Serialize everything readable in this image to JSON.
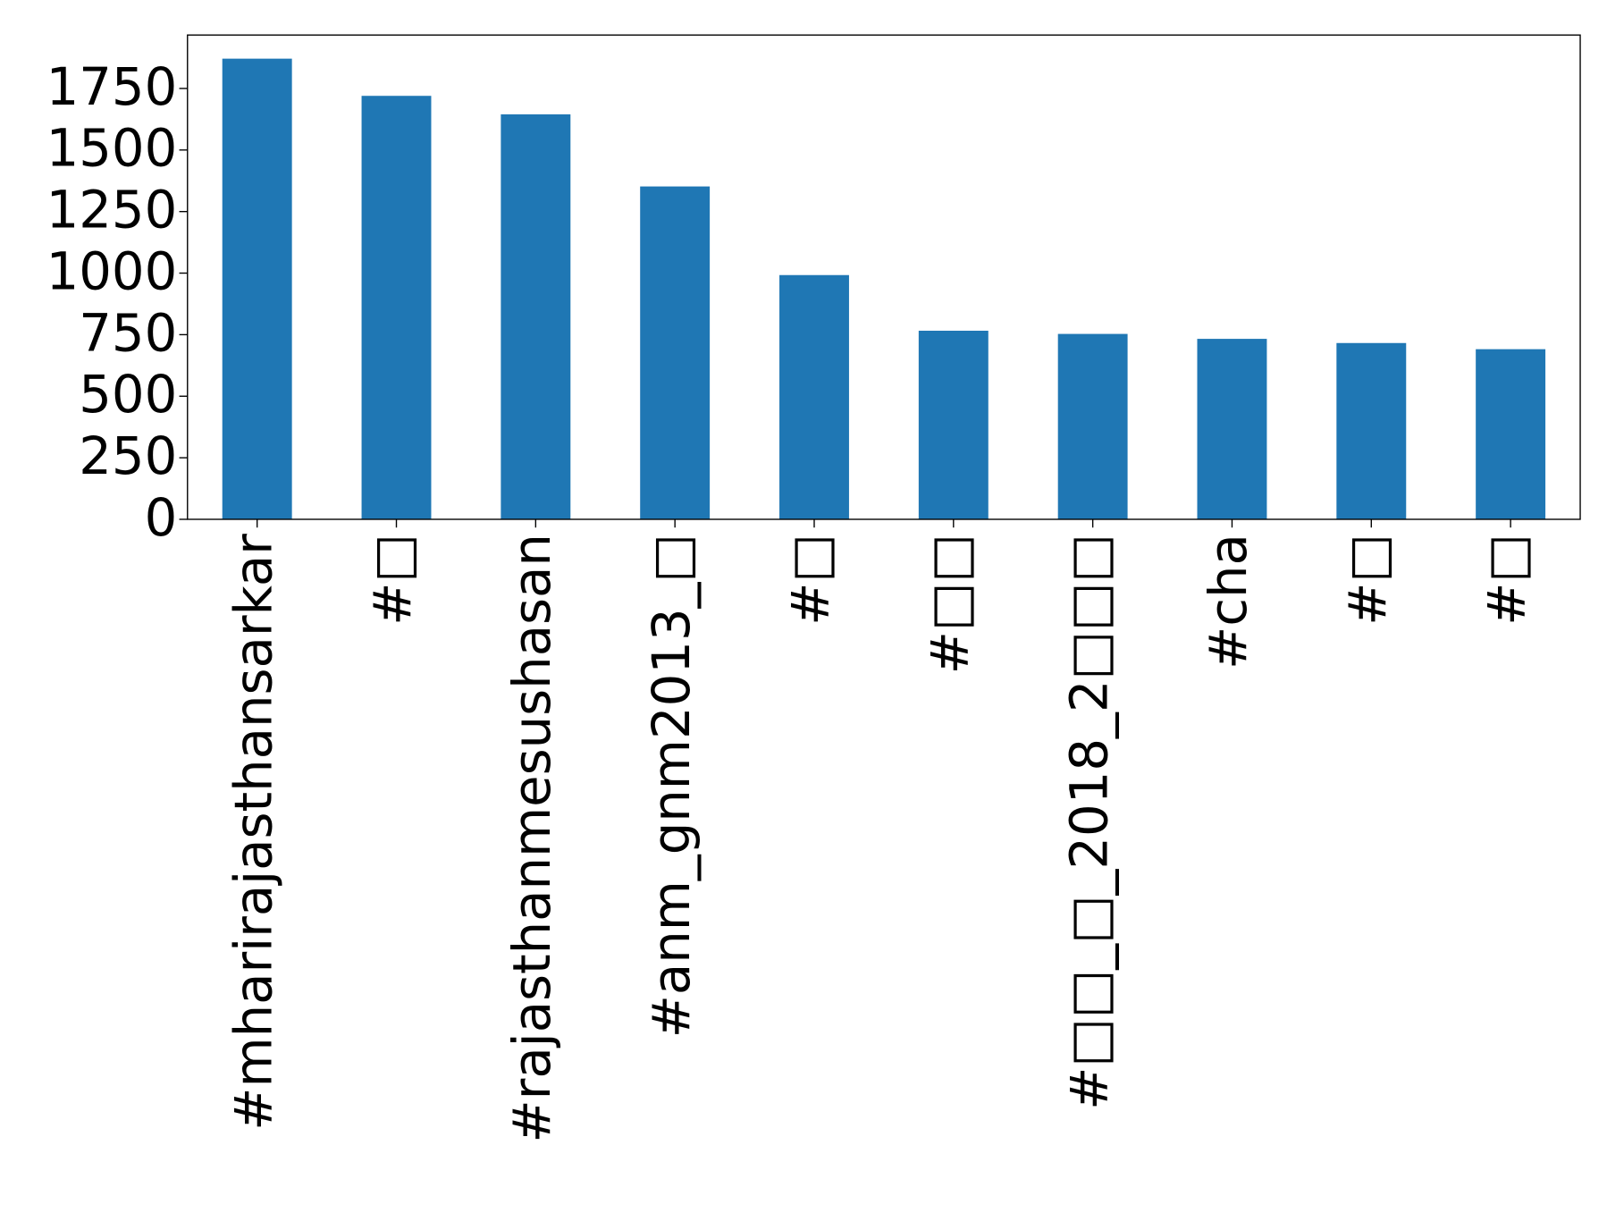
{
  "chart_data": {
    "type": "bar",
    "categories": [
      "#mharirajasthansarkar",
      "#□",
      "#rajasthanmesushasan",
      "#anm_gnm2013_□",
      "#□",
      "#□□",
      "#□□_□_2018_2□□□",
      "#cha",
      "#□",
      "#□"
    ],
    "values": [
      1871,
      1720,
      1645,
      1352,
      992,
      766,
      753,
      733,
      716,
      691
    ],
    "color": "#1f77b4",
    "ylim": [
      0,
      1967
    ],
    "yticks": [
      0,
      250,
      500,
      750,
      1000,
      1250,
      1500,
      1750
    ],
    "grid": false
  }
}
